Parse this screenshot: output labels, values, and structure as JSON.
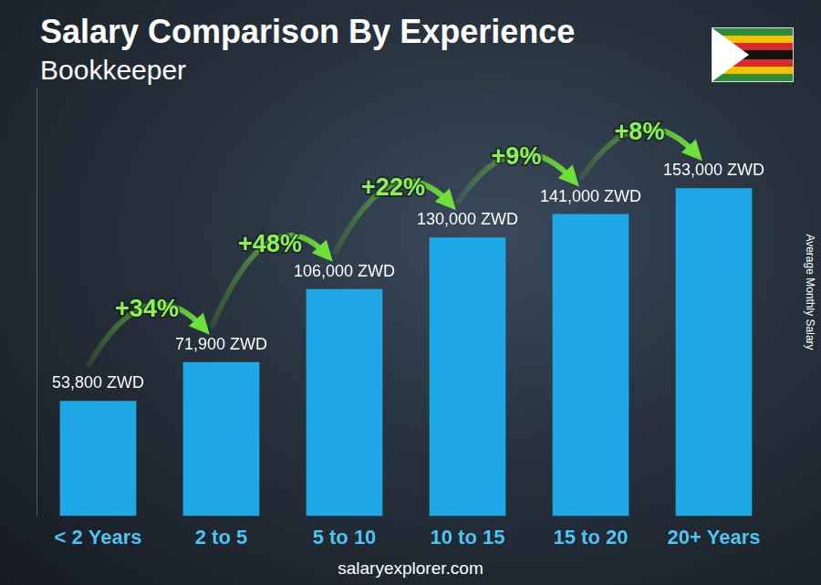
{
  "chart_data": {
    "type": "bar",
    "title": "Salary Comparison By Experience",
    "subtitle": "Bookkeeper",
    "categories": [
      "< 2 Years",
      "2 to 5",
      "5 to 10",
      "10 to 15",
      "15 to 20",
      "20+ Years"
    ],
    "values": [
      53800,
      71900,
      106000,
      130000,
      141000,
      153000
    ],
    "value_labels": [
      "53,800 ZWD",
      "71,900 ZWD",
      "106,000 ZWD",
      "130,000 ZWD",
      "141,000 ZWD",
      "153,000 ZWD"
    ],
    "annotations": [
      "+34%",
      "+48%",
      "+22%",
      "+9%",
      "+8%"
    ],
    "y_label": "Average Monthly Salary",
    "source": "salaryexplorer.com",
    "color": "#1fa8e6",
    "ylim": [
      0,
      200000
    ],
    "grid": false,
    "data_labels": true,
    "tick_labels": "x"
  }
}
